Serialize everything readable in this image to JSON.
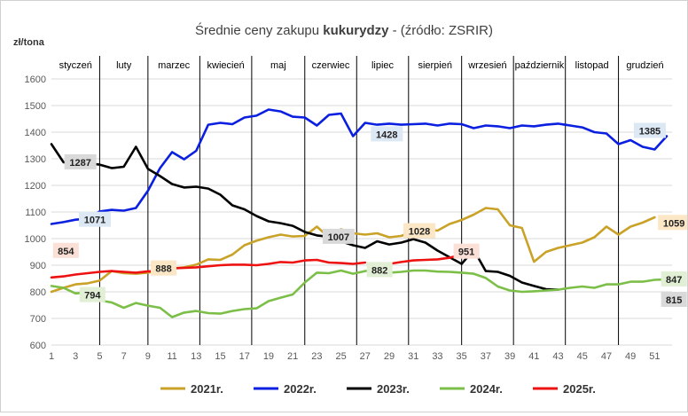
{
  "chart_data": {
    "type": "line",
    "title_parts": [
      "Średnie ceny zakupu ",
      "kukurydzy",
      " - (źródło: ZSRIR)"
    ],
    "ylabel": "zł/tona",
    "xlabel": "",
    "ylim": [
      600,
      1600
    ],
    "yticks": [
      600,
      700,
      800,
      900,
      1000,
      1100,
      1200,
      1300,
      1400,
      1500,
      1600
    ],
    "xlim": [
      1,
      52
    ],
    "xticks": [
      1,
      3,
      5,
      7,
      9,
      11,
      13,
      15,
      17,
      19,
      21,
      23,
      25,
      27,
      29,
      31,
      33,
      35,
      37,
      39,
      41,
      43,
      45,
      47,
      49,
      51
    ],
    "grid": "horizontal",
    "legend_position": "bottom",
    "months": [
      {
        "label": "styczeń",
        "start": 1,
        "end": 5,
        "bold": false
      },
      {
        "label": "luty",
        "start": 5,
        "end": 9,
        "bold": false
      },
      {
        "label": "marzec",
        "start": 9,
        "end": 13.3,
        "bold": false
      },
      {
        "label": "kwiecień",
        "start": 13.3,
        "end": 17.6,
        "bold": false
      },
      {
        "label": "maj",
        "start": 17.6,
        "end": 22,
        "bold": false
      },
      {
        "label": "czerwiec",
        "start": 22,
        "end": 26.3,
        "bold": false
      },
      {
        "label": "lipiec",
        "start": 26.3,
        "end": 30.6,
        "bold": false
      },
      {
        "label": "sierpień",
        "start": 30.6,
        "end": 35,
        "bold": false
      },
      {
        "label": "wrzesień",
        "start": 35,
        "end": 39.3,
        "bold": false
      },
      {
        "label": "październik",
        "start": 39.3,
        "end": 43.6,
        "bold": false
      },
      {
        "label": "listopad",
        "start": 43.6,
        "end": 48,
        "bold": false
      },
      {
        "label": "grudzień",
        "start": 48,
        "end": 52.4,
        "bold": false
      }
    ],
    "month_separators": [
      5,
      9,
      13.3,
      17.6,
      22,
      26.3,
      30.6,
      35,
      39.3,
      43.6,
      48
    ],
    "series": [
      {
        "name": "2021r.",
        "color": "#c9a227",
        "x": [
          1,
          2,
          3,
          4,
          5,
          6,
          7,
          8,
          9,
          10,
          11,
          12,
          13,
          14,
          15,
          16,
          17,
          18,
          19,
          20,
          21,
          22,
          23,
          24,
          25,
          26,
          27,
          28,
          29,
          30,
          31,
          32,
          33,
          34,
          35,
          36,
          37,
          38,
          39,
          40,
          41,
          42,
          43,
          44,
          45,
          46,
          47,
          48,
          49,
          50,
          51
        ],
        "values": [
          800,
          815,
          828,
          832,
          842,
          878,
          870,
          868,
          872,
          880,
          888,
          892,
          902,
          922,
          920,
          940,
          975,
          992,
          1005,
          1015,
          1008,
          1010,
          1045,
          1005,
          1035,
          1020,
          1015,
          1020,
          1005,
          1010,
          1028,
          1035,
          1030,
          1055,
          1070,
          1090,
          1115,
          1110,
          1050,
          1040,
          913,
          950,
          965,
          975,
          985,
          1005,
          1045,
          1015,
          1045,
          1060,
          1080
        ],
        "label_value": "1059"
      },
      {
        "name": "2022r.",
        "color": "#0a1fe0",
        "x": [
          1,
          2,
          3,
          4,
          5,
          6,
          7,
          8,
          9,
          10,
          11,
          12,
          13,
          14,
          15,
          16,
          17,
          18,
          19,
          20,
          21,
          22,
          23,
          24,
          25,
          26,
          27,
          28,
          29,
          30,
          31,
          32,
          33,
          34,
          35,
          36,
          37,
          38,
          39,
          40,
          41,
          42,
          43,
          44,
          45,
          46,
          47,
          48,
          49,
          50,
          51,
          52
        ],
        "values": [
          1055,
          1062,
          1071,
          1075,
          1102,
          1108,
          1105,
          1115,
          1180,
          1265,
          1325,
          1298,
          1330,
          1428,
          1435,
          1430,
          1455,
          1462,
          1485,
          1478,
          1458,
          1455,
          1425,
          1465,
          1470,
          1385,
          1435,
          1428,
          1432,
          1428,
          1430,
          1432,
          1425,
          1432,
          1430,
          1415,
          1425,
          1422,
          1415,
          1425,
          1422,
          1428,
          1432,
          1425,
          1418,
          1400,
          1395,
          1355,
          1370,
          1345,
          1335,
          1385
        ],
        "label_value": "1428",
        "label_value_end": "1385"
      },
      {
        "name": "2023r.",
        "color": "#000000",
        "x": [
          1,
          2,
          3,
          4,
          5,
          6,
          7,
          8,
          9,
          10,
          11,
          12,
          13,
          14,
          15,
          16,
          17,
          18,
          19,
          20,
          21,
          22,
          23,
          24,
          25,
          26,
          27,
          28,
          29,
          30,
          31,
          32,
          33,
          34,
          35,
          36,
          37,
          38,
          39,
          40,
          41,
          42,
          43
        ],
        "values": [
          1355,
          1287,
          1282,
          1283,
          1278,
          1265,
          1270,
          1345,
          1262,
          1235,
          1205,
          1192,
          1195,
          1188,
          1165,
          1125,
          1110,
          1085,
          1065,
          1058,
          1048,
          1025,
          1012,
          1007,
          990,
          975,
          965,
          990,
          978,
          985,
          998,
          985,
          955,
          930,
          905,
          958,
          878,
          875,
          860,
          835,
          822,
          810,
          808
        ],
        "label_value": "1287",
        "label_value_mid": "1007"
      },
      {
        "name": "2024r.",
        "color": "#7cbf48",
        "x": [
          1,
          2,
          3,
          4,
          5,
          6,
          7,
          8,
          9,
          10,
          11,
          12,
          13,
          14,
          15,
          16,
          17,
          18,
          19,
          20,
          21,
          22,
          23,
          24,
          25,
          26,
          27,
          28,
          29,
          30,
          31,
          32,
          33,
          34,
          35,
          36,
          37,
          38,
          39,
          40,
          41,
          42,
          43,
          44,
          45,
          46,
          47,
          48,
          49,
          50,
          51,
          52
        ],
        "values": [
          822,
          815,
          794,
          798,
          768,
          760,
          740,
          758,
          748,
          740,
          705,
          722,
          728,
          720,
          718,
          728,
          735,
          738,
          765,
          778,
          790,
          835,
          872,
          870,
          880,
          868,
          878,
          882,
          872,
          875,
          880,
          880,
          876,
          875,
          872,
          868,
          852,
          820,
          805,
          800,
          802,
          805,
          808,
          815,
          820,
          815,
          828,
          828,
          838,
          838,
          845,
          847
        ],
        "label_value": "794",
        "label_value_mid": "882",
        "label_value_end": "847"
      },
      {
        "name": "2025r.",
        "color": "#ee1111",
        "x": [
          1,
          2,
          3,
          4,
          5,
          6,
          7,
          8,
          9,
          10,
          11,
          12,
          13,
          14,
          15,
          16,
          17,
          18,
          19,
          20,
          21,
          22,
          23,
          24,
          25,
          26,
          27,
          28,
          29,
          30,
          31,
          32,
          33,
          34,
          35,
          36
        ],
        "values": [
          854,
          858,
          865,
          870,
          875,
          878,
          875,
          872,
          877,
          878,
          888,
          890,
          892,
          896,
          900,
          902,
          902,
          900,
          905,
          912,
          910,
          918,
          920,
          910,
          908,
          905,
          910,
          null,
          905,
          912,
          918,
          920,
          922,
          928,
          940,
          951
        ],
        "label_value": "854",
        "label_value_mid": "888",
        "label_value_end": "951",
        "label_value_extra": "1028"
      }
    ],
    "extra_label": "815"
  }
}
